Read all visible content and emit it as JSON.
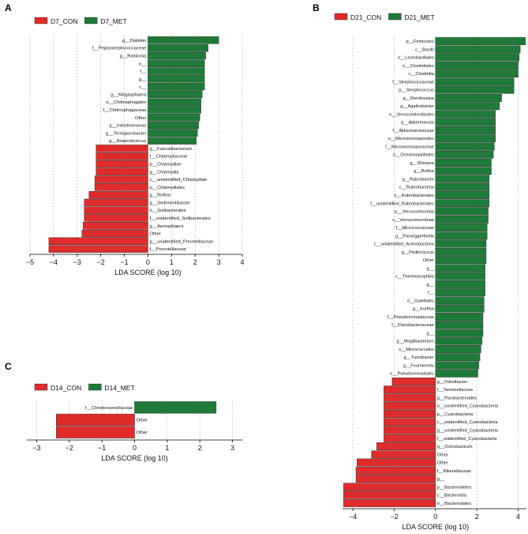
{
  "colors": {
    "con": "#e02b2b",
    "met": "#1f7a3a",
    "grid": "#bbbbbb",
    "axis": "#000000"
  },
  "chart_data": [
    {
      "panel": "A",
      "type": "bar",
      "orientation": "horizontal",
      "legend": [
        {
          "name": "D7_CON",
          "group": "con"
        },
        {
          "name": "D7_MET",
          "group": "met"
        }
      ],
      "xlabel": "LDA SCORE (log 10)",
      "xlim": [
        -5,
        4
      ],
      "xticks": [
        -5,
        -4,
        -3,
        -2,
        -1,
        0,
        1,
        2,
        3,
        4
      ],
      "categories": [
        "g__Dialister",
        "f__Peptostreptococcaceae",
        "g__Ralstonia",
        "o__",
        "f__",
        "g__",
        "c__",
        "g__Megasphaera",
        "o__Chitinophagales",
        "f__Chitinophagaceae",
        "Other",
        "g__Intestinimonas",
        "g__Terrisporobacter",
        "g__Anaerotruncus",
        "g__Faecalibacterium",
        "f__Chlamydiaceae",
        "p__Chlamydiae",
        "g__Chlamydia",
        "c__unidentified_Chlamydiae",
        "o__Chlamydiales",
        "g__Rothia",
        "g__Sedimentibacter",
        "o__Solibacterales",
        "f__unidentified_Solibacterales",
        "g__Aerosphaera",
        "Other",
        "g__unidentified_Prevotellaceae",
        "f__Prevotellaceae"
      ],
      "values": [
        3.0,
        2.55,
        2.45,
        2.4,
        2.4,
        2.4,
        2.4,
        2.3,
        2.25,
        2.25,
        2.2,
        2.15,
        2.1,
        2.05,
        -2.2,
        -2.2,
        -2.2,
        -2.2,
        -2.25,
        -2.25,
        -2.5,
        -2.7,
        -2.7,
        -2.7,
        -2.75,
        -2.8,
        -4.2,
        -4.2
      ]
    },
    {
      "panel": "B",
      "type": "bar",
      "orientation": "horizontal",
      "legend": [
        {
          "name": "D21_CON",
          "group": "con"
        },
        {
          "name": "D21_MET",
          "group": "met"
        }
      ],
      "xlabel": "LDA SCORE (log 10)",
      "xlim": [
        -4.5,
        4.4
      ],
      "xticks": [
        -4,
        -2,
        0,
        2,
        4
      ],
      "categories": [
        "p__Firmicutes",
        "c__Bacilli",
        "o__Lactobacillales",
        "o__Clostridiales",
        "c__Clostridia",
        "f__Streptococcaceae",
        "g__Streptococcus",
        "g__Romboutsia",
        "g__Agathobacter",
        "o__Verrucomicrobiales",
        "g__Akkermansia",
        "f__Akkermansiaceae",
        "o__Micromonosporales",
        "f__Micromonosporaceae",
        "o__Oceanospirillales",
        "g__Sharpea",
        "g__Rothia",
        "g__Rubrobacter",
        "c__Rubrobacteria",
        "o__Rubrobacterales",
        "f__unidentified_Rubrobacterales",
        "p__Verrucomicrobia",
        "c__Verrucomicrobiae",
        "f__Micrococcaceae",
        "g__Paraeggerthella",
        "c__unidentified_Actinobacteria",
        "g__Pediococcus",
        "Other",
        "g__",
        "c__Thermoleophilia",
        "g__",
        "f__",
        "o__Gaiellales",
        "g__Kurthia",
        "f__Pseudomonadaceae",
        "f__Flavobacteriaceae",
        "g__",
        "g__Moglibacterium",
        "o__Micrococcales",
        "g__Turicibacter",
        "g__Fournierella",
        "o__Pseudomonadales",
        "g__Odoribacter",
        "f__Tannerellaceae",
        "g__Parabacteroides",
        "o__unidentified_Cyanobacteria",
        "p__Cyanobacteria",
        "c__unidentified_Cyanobacteria",
        "g__unidentified_Cyanobacteria",
        "f__unidentified_Cyanobacteria",
        "g__Ochrobactrum",
        "Other",
        "Other",
        "f__Rikenellaceae",
        "g__",
        "p__Bacteroidetes",
        "c__Bacteroidia",
        "o__Bacteroidales"
      ],
      "values": [
        4.35,
        4.1,
        4.05,
        4.0,
        4.0,
        3.8,
        3.8,
        3.2,
        3.1,
        2.9,
        2.9,
        2.9,
        2.9,
        2.85,
        2.8,
        2.7,
        2.7,
        2.6,
        2.6,
        2.6,
        2.6,
        2.55,
        2.55,
        2.5,
        2.5,
        2.45,
        2.45,
        2.45,
        2.4,
        2.4,
        2.4,
        2.4,
        2.35,
        2.35,
        2.3,
        2.3,
        2.3,
        2.25,
        2.2,
        2.15,
        2.1,
        2.05,
        -2.1,
        -2.5,
        -2.5,
        -2.5,
        -2.5,
        -2.5,
        -2.5,
        -2.5,
        -2.85,
        -3.1,
        -3.8,
        -3.85,
        -3.85,
        -4.45,
        -4.45,
        -4.45
      ]
    },
    {
      "panel": "C",
      "type": "bar",
      "orientation": "horizontal",
      "legend": [
        {
          "name": "D14_CON",
          "group": "con"
        },
        {
          "name": "D14_MET",
          "group": "met"
        }
      ],
      "xlabel": "LDA SCORE (log 10)",
      "xlim": [
        -3.3,
        3.3
      ],
      "xticks": [
        -3,
        -2,
        -1,
        0,
        1,
        2,
        3
      ],
      "categories": [
        "f__Christensenellaceae",
        "Other",
        "Other"
      ],
      "values": [
        2.5,
        -2.4,
        -2.4
      ]
    }
  ]
}
